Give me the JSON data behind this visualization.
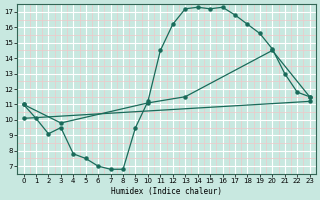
{
  "xlabel": "Humidex (Indice chaleur)",
  "bg_color": "#c8e8e0",
  "grid_major_color": "#ffffff",
  "grid_minor_color": "#f0c8c8",
  "line_color": "#1a6b5a",
  "xlim": [
    -0.5,
    23.5
  ],
  "ylim": [
    6.5,
    17.5
  ],
  "xticks": [
    0,
    1,
    2,
    3,
    4,
    5,
    6,
    7,
    8,
    9,
    10,
    11,
    12,
    13,
    14,
    15,
    16,
    17,
    18,
    19,
    20,
    21,
    22,
    23
  ],
  "yticks": [
    7,
    8,
    9,
    10,
    11,
    12,
    13,
    14,
    15,
    16,
    17
  ],
  "line1_x": [
    0,
    1,
    2,
    3,
    4,
    5,
    6,
    7,
    8,
    9,
    10,
    11,
    12,
    13,
    14,
    15,
    16,
    17,
    18,
    19,
    20,
    21,
    22,
    23
  ],
  "line1_y": [
    11.0,
    10.1,
    9.1,
    9.5,
    7.8,
    7.5,
    7.0,
    6.8,
    6.8,
    9.5,
    11.2,
    14.5,
    16.2,
    17.2,
    17.3,
    17.2,
    17.3,
    16.8,
    16.2,
    15.6,
    14.6,
    13.0,
    11.8,
    11.5
  ],
  "line2_x": [
    0,
    3,
    10,
    13,
    20,
    23
  ],
  "line2_y": [
    11.0,
    9.8,
    11.1,
    11.5,
    14.5,
    11.5
  ],
  "line3_x": [
    0,
    23
  ],
  "line3_y": [
    10.1,
    11.2
  ]
}
